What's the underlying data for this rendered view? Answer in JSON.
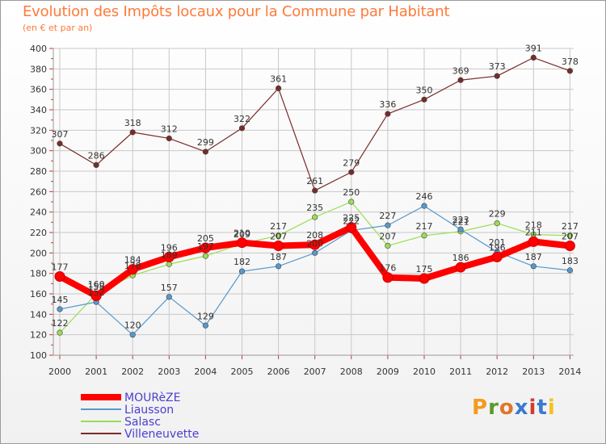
{
  "title": "Evolution des Impôts locaux pour la Commune par Habitant",
  "subtitle": "(en € et par an)",
  "brand": {
    "letters": [
      "P",
      "r",
      "o",
      "x",
      "i",
      "t",
      "i"
    ],
    "colors": [
      "#f39a1e",
      "#5a9a2c",
      "#e0762b",
      "#3a7ad0",
      "#d23c2c",
      "#3a7ad0",
      "#f3c21e"
    ]
  },
  "chart_data": {
    "type": "line",
    "title": "Evolution des Impôts locaux pour la Commune par Habitant",
    "subtitle": "(en € et par an)",
    "xlabel": "",
    "ylabel": "",
    "ylim": [
      100,
      400
    ],
    "yticks": [
      100,
      120,
      140,
      160,
      180,
      200,
      220,
      240,
      260,
      280,
      300,
      320,
      340,
      360,
      380,
      400
    ],
    "ytick_labels": [
      "100",
      "120",
      "140",
      "160",
      "180",
      "200",
      "220",
      "240",
      "260",
      "280",
      "300",
      "320",
      "340",
      "360",
      "380",
      "400"
    ],
    "categories": [
      "2000",
      "2001",
      "2002",
      "2003",
      "2004",
      "2005",
      "2006",
      "2007",
      "2008",
      "2009",
      "2010",
      "2011",
      "2012",
      "2013",
      "2014"
    ],
    "legend_position": "bottom-left",
    "grid": true,
    "series": [
      {
        "name": "Villeneuvette",
        "color": "#7a2a2a",
        "values": [
          307,
          286,
          318,
          312,
          299,
          322,
          361,
          261,
          279,
          336,
          350,
          369,
          373,
          391,
          378
        ]
      },
      {
        "name": "Salasc",
        "color": "#99dd55",
        "values": [
          122,
          160,
          178,
          189,
          197,
          209,
          217,
          235,
          250,
          207,
          217,
          221,
          229,
          218,
          217
        ]
      },
      {
        "name": "Liausson",
        "color": "#5599cc",
        "values": [
          145,
          152,
          120,
          157,
          129,
          182,
          187,
          200,
          222,
          227,
          246,
          223,
          201,
          187,
          183
        ]
      },
      {
        "name": "MOURèZE",
        "color": "#ff0000",
        "values": [
          177,
          158,
          184,
          196,
          205,
          210,
          207,
          208,
          225,
          176,
          175,
          186,
          196,
          211,
          207
        ]
      }
    ],
    "legend": [
      "MOURèZE",
      "Liausson",
      "Salasc",
      "Villeneuvette"
    ]
  }
}
